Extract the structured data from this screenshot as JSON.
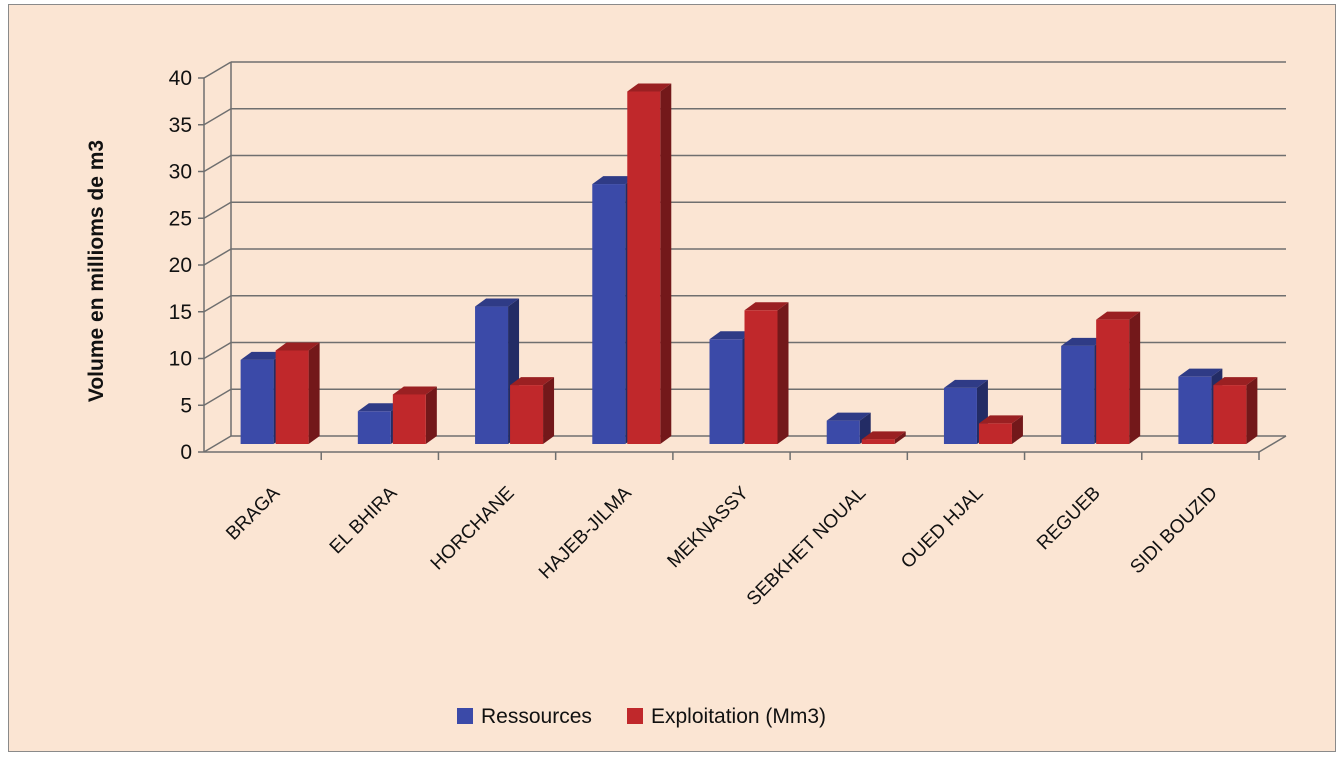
{
  "chart_data": {
    "type": "bar",
    "variant": "3d-clustered",
    "title": "",
    "xlabel": "",
    "ylabel": "Volume en millioms de m3",
    "ylim": [
      0,
      40
    ],
    "yticks": [
      "0",
      "5",
      "10",
      "15",
      "20",
      "25",
      "30",
      "35",
      "40"
    ],
    "grid": true,
    "legend_position": "bottom",
    "categories": [
      "BRAGA",
      "EL BHIRA",
      "HORCHANE",
      "HAJEB-JILMA",
      "MEKNASSY",
      "SEBKHET NOUAL",
      "OUED HJAL",
      "REGUEB",
      "SIDI BOUZID"
    ],
    "series": [
      {
        "name": "Ressources",
        "color": "#3b4aa8",
        "values": [
          9,
          3.5,
          14.7,
          27.8,
          11.2,
          2.5,
          6,
          10.5,
          7.2
        ]
      },
      {
        "name": "Exploitation (Mm3)",
        "color": "#c0282b",
        "values": [
          10,
          5.3,
          6.3,
          37.7,
          14.3,
          0.5,
          2.2,
          13.3,
          6.3
        ]
      }
    ]
  }
}
